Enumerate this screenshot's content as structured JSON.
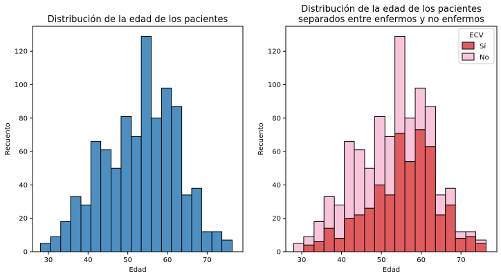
{
  "chart_data": [
    {
      "type": "histogram",
      "title": "Distribución de la edad de los pacientes",
      "xlabel": "Edad",
      "ylabel": "Recuento",
      "xlim": [
        26,
        79
      ],
      "ylim": [
        0,
        135
      ],
      "xticks": [
        "30",
        "40",
        "50",
        "60",
        "70"
      ],
      "yticks": [
        "0",
        "20",
        "40",
        "60",
        "80",
        "100",
        "120"
      ],
      "bin_edges": [
        28.0,
        30.5,
        33.1,
        35.6,
        38.2,
        40.7,
        43.2,
        45.8,
        48.3,
        50.9,
        53.4,
        55.9,
        58.5,
        61.0,
        63.6,
        66.1,
        68.6,
        71.2,
        73.7,
        76.3
      ],
      "values": [
        5,
        9,
        18,
        33,
        28,
        66,
        61,
        50,
        81,
        69,
        129,
        80,
        98,
        87,
        34,
        38,
        12,
        12,
        7
      ],
      "color": "#4c8fc0",
      "grid": false
    },
    {
      "type": "histogram-stacked",
      "title": "Distribución de la edad de los pacientes\nseparados entre enfermos y no enfermos",
      "title_lines": [
        "Distribución de la edad de los pacientes",
        "separados entre enfermos y no enfermos"
      ],
      "xlabel": "Edad",
      "ylabel": "Recuento",
      "xlim": [
        26,
        79
      ],
      "ylim": [
        0,
        135
      ],
      "xticks": [
        "30",
        "40",
        "50",
        "60",
        "70"
      ],
      "yticks": [
        "0",
        "20",
        "40",
        "60",
        "80",
        "100",
        "120"
      ],
      "bin_edges": [
        28.0,
        30.5,
        33.1,
        35.6,
        38.2,
        40.7,
        43.2,
        45.8,
        48.3,
        50.9,
        53.4,
        55.9,
        58.5,
        61.0,
        63.6,
        66.1,
        68.6,
        71.2,
        73.7,
        76.3
      ],
      "series": [
        {
          "name": "Sí",
          "values": [
            0,
            4,
            6,
            14,
            8,
            20,
            22,
            26,
            40,
            34,
            71,
            54,
            73,
            63,
            22,
            28,
            8,
            9,
            5
          ],
          "color": "#e05b5e"
        },
        {
          "name": "No",
          "values": [
            5,
            5,
            12,
            19,
            20,
            46,
            39,
            24,
            41,
            35,
            58,
            26,
            25,
            24,
            12,
            10,
            4,
            3,
            2
          ],
          "color": "#f7c5da"
        }
      ],
      "legend": {
        "title": "ECV",
        "position": "top-right"
      },
      "grid": false
    }
  ]
}
